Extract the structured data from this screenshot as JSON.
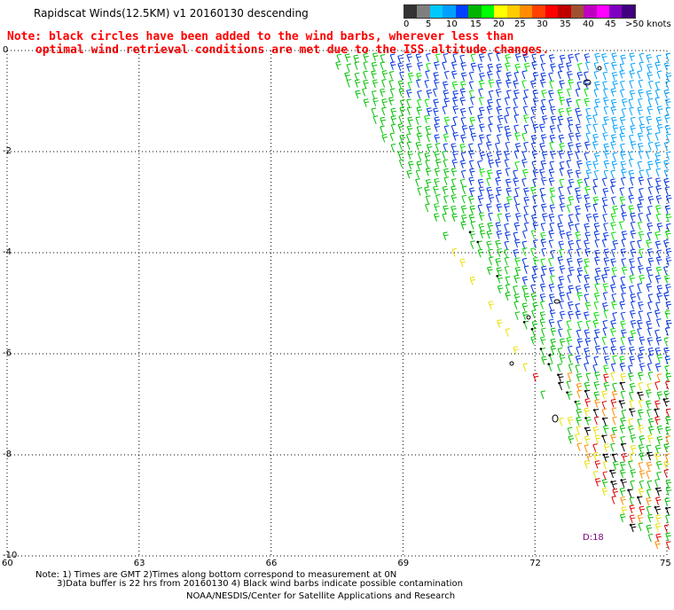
{
  "title": "Rapidscat Winds(12.5KM) v1 20160130 descending",
  "note": {
    "line1": "Note: black circles have been added to the wind barbs, wherever less than",
    "line2": "optimal wind retrieval conditions are met due to the ISS altitude changes."
  },
  "colorbar": {
    "colors": [
      "#333333",
      "#7f7f7f",
      "#00c8ff",
      "#00a0ff",
      "#0040ff",
      "#00b400",
      "#00ff00",
      "#ffff00",
      "#ffcc00",
      "#ff8c00",
      "#ff4000",
      "#ff0000",
      "#c00000",
      "#a05030",
      "#c000c0",
      "#ff00ff",
      "#8000c0",
      "#400080"
    ],
    "labels": [
      "0",
      "5",
      "10",
      "15",
      "20",
      "25",
      "30",
      "35",
      "40",
      "45",
      ">50 knots"
    ]
  },
  "axes": {
    "x_ticks": [
      "60",
      "63",
      "66",
      "69",
      "72",
      "75"
    ],
    "y_ticks": [
      "0",
      "-2",
      "-4",
      "-6",
      "-8",
      "-10"
    ]
  },
  "timestamp_label": "D:18",
  "footer": {
    "line1": "Note: 1) Times are GMT 2)Times along bottom correspond to measurement at 0N",
    "line2": "3)Data buffer is 22 hrs from 20160130 4) Black wind barbs indicate possible contamination",
    "line3": "NOAA/NESDIS/Center for Satellite Applications and Research"
  },
  "chart_data": {
    "type": "map",
    "xlim": [
      60,
      75
    ],
    "ylim": [
      -10,
      0
    ],
    "grid": true
  }
}
